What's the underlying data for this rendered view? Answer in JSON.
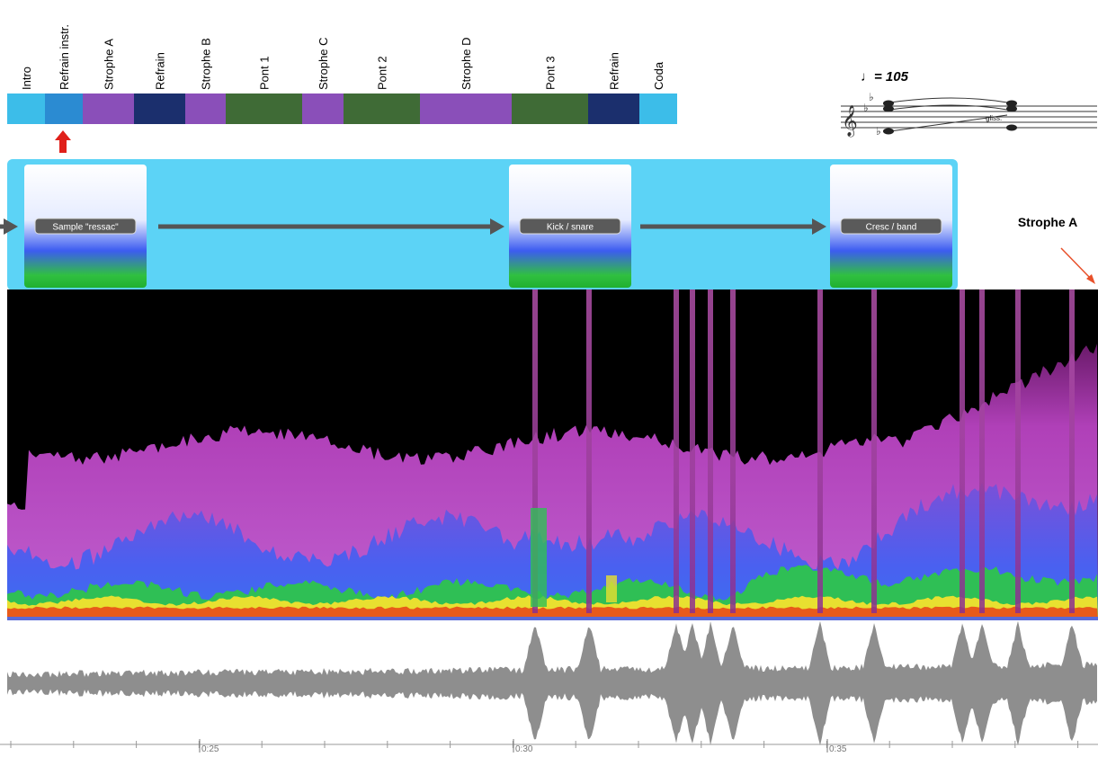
{
  "sections": [
    {
      "label": "Intro",
      "color": "#3cbde9"
    },
    {
      "label": "Refrain instr.",
      "color": "#2b8bd2"
    },
    {
      "label": "Strophe A",
      "color": "#8a4fb9"
    },
    {
      "label": "Refrain",
      "color": "#1b2f6d"
    },
    {
      "label": "Strophe B",
      "color": "#8a4fb9"
    },
    {
      "label": "Pont 1",
      "color": "#3f6b36"
    },
    {
      "label": "Strophe C",
      "color": "#8a4fb9"
    },
    {
      "label": "Pont 2",
      "color": "#3f6b36"
    },
    {
      "label": "Strophe D",
      "color": "#8a4fb9"
    },
    {
      "label": "Pont 3",
      "color": "#3f6b36"
    },
    {
      "label": "Refrain",
      "color": "#1b2f6d"
    },
    {
      "label": "Coda",
      "color": "#3cbde9"
    }
  ],
  "score": {
    "tempo": "♩= 105",
    "gliss": "gliss."
  },
  "events": [
    {
      "label": "Sample \"ressac\""
    },
    {
      "label": "Kick / snare"
    },
    {
      "label": "Cresc / band"
    }
  ],
  "annotation": "Strophe A",
  "timeline": [
    "0:25",
    "0:30",
    "0:35"
  ]
}
